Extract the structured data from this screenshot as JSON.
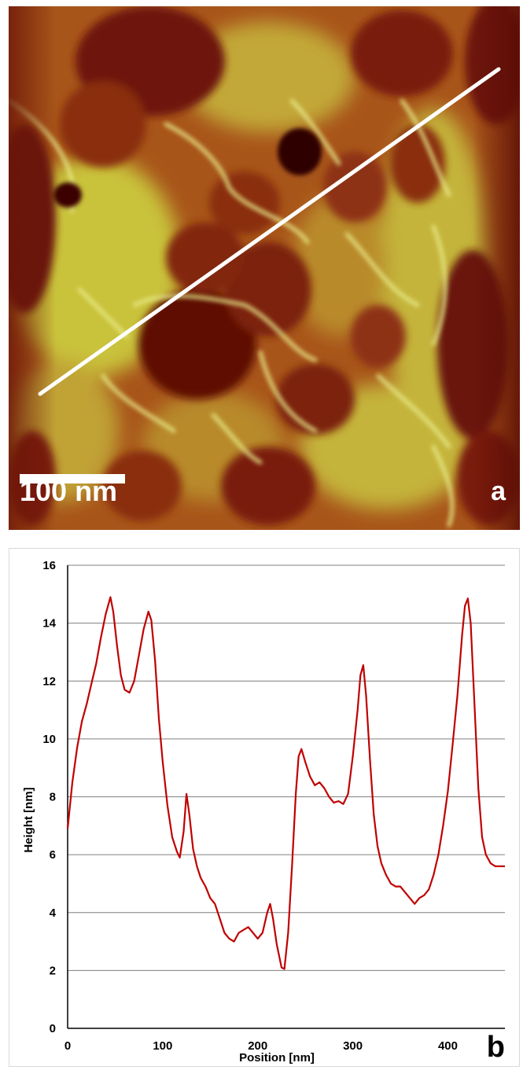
{
  "panel_a": {
    "panel_label": "a",
    "scale_bar_label": "100 nm",
    "colors": {
      "dark": "#5a0c05",
      "mid": "#a8551a",
      "light": "#c9c23a",
      "highlight": "#eef29a",
      "line": "#ffffff"
    }
  },
  "panel_b": {
    "panel_label": "b"
  },
  "chart_data": {
    "type": "line",
    "title": "",
    "xlabel": "Position [nm]",
    "ylabel": "Height [nm]",
    "xlim": [
      0,
      460
    ],
    "ylim": [
      0,
      16
    ],
    "xticks": [
      0,
      100,
      200,
      300,
      400
    ],
    "yticks": [
      0,
      2,
      4,
      6,
      8,
      10,
      12,
      14,
      16
    ],
    "grid": "horizontal",
    "color": "#c00000",
    "series": [
      {
        "x": [
          0,
          5,
          10,
          15,
          20,
          25,
          30,
          35,
          40,
          45,
          48,
          52,
          56,
          60,
          65,
          70,
          75,
          80,
          85,
          88,
          92,
          96,
          100,
          105,
          110,
          115,
          118,
          122,
          125,
          128,
          132,
          136,
          140,
          145,
          150,
          155,
          160,
          165,
          170,
          175,
          180,
          185,
          190,
          195,
          200,
          205,
          210,
          213,
          216,
          220,
          225,
          228,
          232,
          236,
          240,
          243,
          246,
          250,
          255,
          260,
          265,
          270,
          275,
          280,
          285,
          290,
          295,
          300,
          305,
          308,
          311,
          314,
          318,
          322,
          326,
          330,
          335,
          340,
          345,
          350,
          355,
          360,
          365,
          370,
          375,
          380,
          385,
          390,
          395,
          400,
          405,
          410,
          415,
          418,
          421,
          424,
          428,
          432,
          436,
          440,
          445,
          450,
          455,
          460
        ],
        "y": [
          6.9,
          8.5,
          9.7,
          10.6,
          11.2,
          11.9,
          12.6,
          13.5,
          14.3,
          14.9,
          14.4,
          13.2,
          12.2,
          11.7,
          11.6,
          12.0,
          12.9,
          13.8,
          14.4,
          14.1,
          12.7,
          10.7,
          9.2,
          7.7,
          6.6,
          6.1,
          5.9,
          6.8,
          8.1,
          7.4,
          6.2,
          5.6,
          5.2,
          4.9,
          4.5,
          4.3,
          3.8,
          3.3,
          3.1,
          3.0,
          3.3,
          3.4,
          3.5,
          3.3,
          3.1,
          3.3,
          4.0,
          4.3,
          3.8,
          2.9,
          2.1,
          2.05,
          3.3,
          5.6,
          8.1,
          9.4,
          9.65,
          9.2,
          8.7,
          8.4,
          8.5,
          8.3,
          8.0,
          7.8,
          7.85,
          7.75,
          8.1,
          9.4,
          11.0,
          12.2,
          12.55,
          11.5,
          9.3,
          7.4,
          6.3,
          5.7,
          5.3,
          5.0,
          4.9,
          4.9,
          4.7,
          4.5,
          4.3,
          4.5,
          4.6,
          4.8,
          5.3,
          6.0,
          7.0,
          8.2,
          9.8,
          11.5,
          13.6,
          14.6,
          14.85,
          14.0,
          11.2,
          8.3,
          6.6,
          6.0,
          5.7,
          5.6,
          5.6,
          5.6
        ]
      }
    ]
  }
}
